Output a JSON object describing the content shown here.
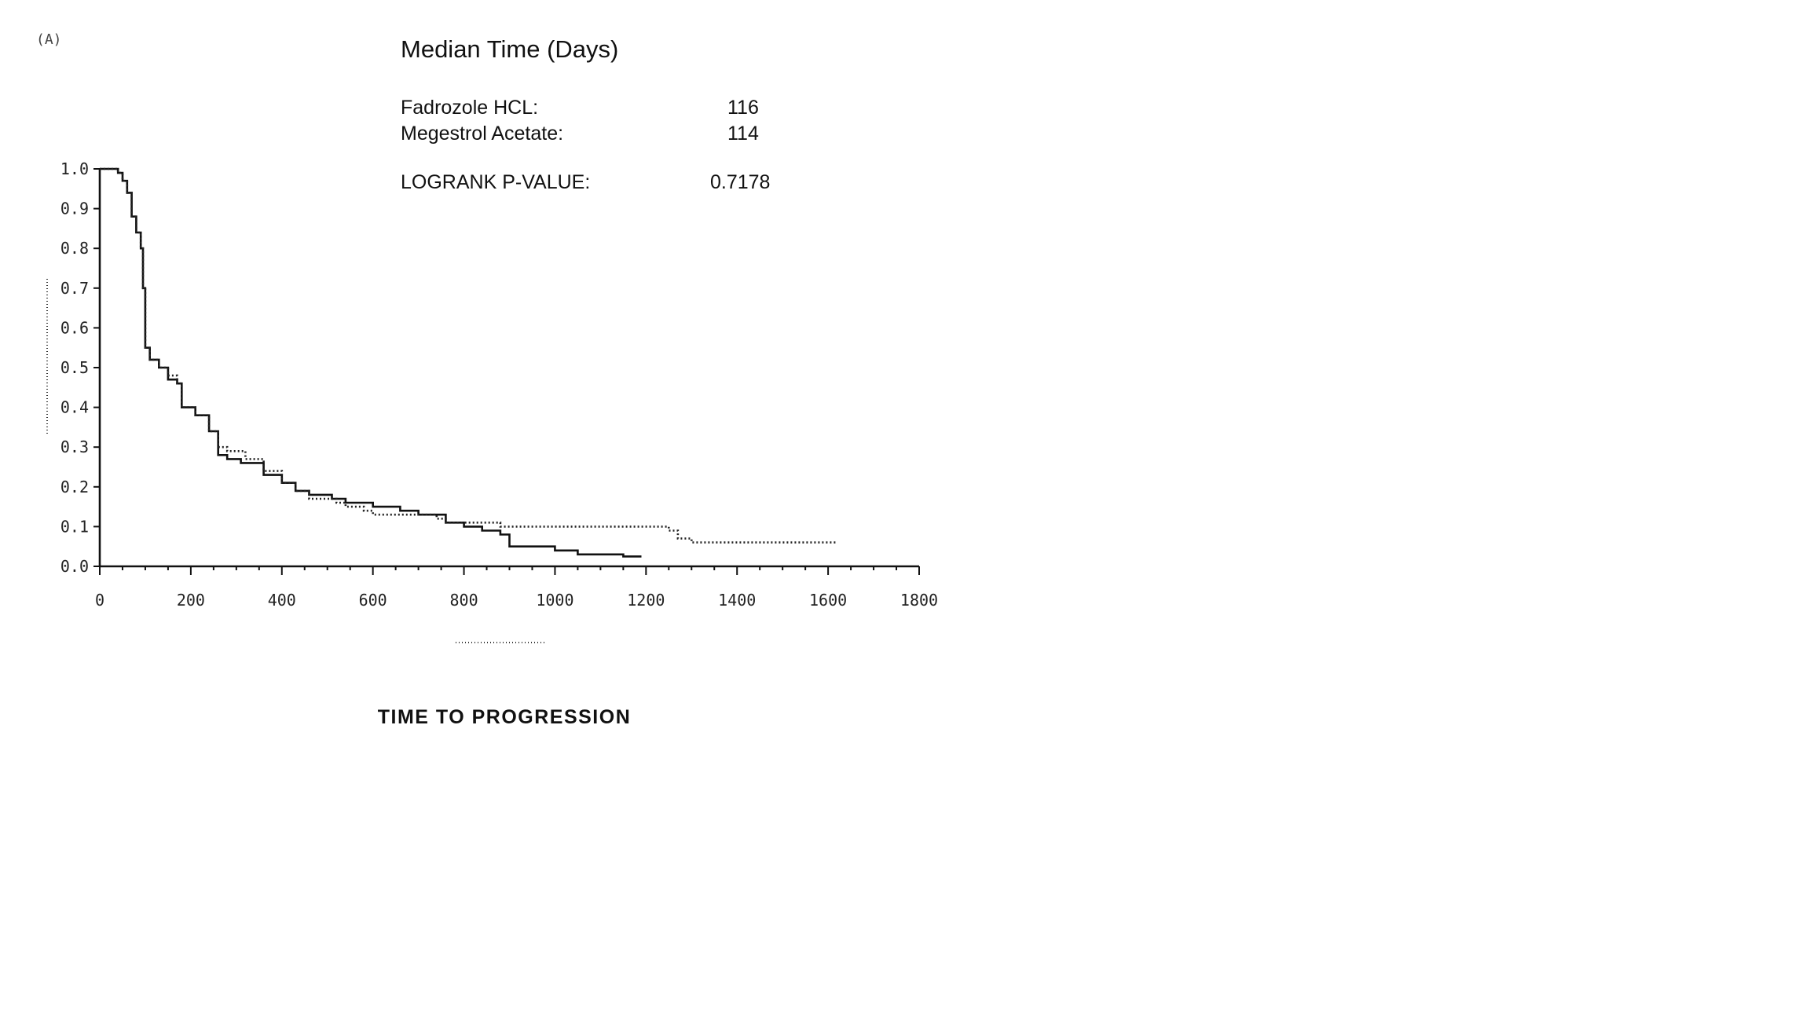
{
  "panel_label": "(A)",
  "annotation": {
    "title": "Median Time (Days)",
    "rows": [
      {
        "label": "Fadrozole HCL:",
        "value": "116"
      },
      {
        "label": "Megestrol Acetate:",
        "value": "114"
      }
    ],
    "pvalue_label": "LOGRANK P-VALUE:",
    "pvalue": "0.7178"
  },
  "footer_title": "TIME TO PROGRESSION",
  "chart_data": {
    "type": "line",
    "xlim": [
      0,
      1800
    ],
    "ylim": [
      0,
      1.0
    ],
    "x_ticks": [
      0,
      200,
      400,
      600,
      800,
      1000,
      1200,
      1400,
      1600,
      1800
    ],
    "x_tick_labels": [
      "0",
      "200",
      "400",
      "600",
      "800",
      "1000",
      "1200",
      "1400",
      "1600",
      "1800"
    ],
    "y_ticks": [
      0,
      0.1,
      0.2,
      0.3,
      0.4,
      0.5,
      0.6,
      0.7,
      0.8,
      0.9,
      1.0
    ],
    "y_tick_labels": [
      "0.0",
      "0.1",
      "0.2",
      "0.3",
      "0.4",
      "0.5",
      "0.6",
      "0.7",
      "0.8",
      "0.9",
      "1.0"
    ],
    "series": [
      {
        "style": "solid",
        "color": "#111111",
        "x": [
          0,
          20,
          30,
          40,
          50,
          60,
          70,
          80,
          90,
          95,
          100,
          110,
          130,
          150,
          170,
          180,
          210,
          240,
          260,
          280,
          310,
          360,
          400,
          430,
          460,
          510,
          540,
          600,
          660,
          700,
          760,
          800,
          840,
          880,
          900,
          950,
          1000,
          1050,
          1100,
          1150,
          1190
        ],
        "y": [
          1.0,
          1.0,
          1.0,
          0.99,
          0.97,
          0.94,
          0.88,
          0.84,
          0.8,
          0.7,
          0.55,
          0.52,
          0.5,
          0.47,
          0.46,
          0.4,
          0.38,
          0.34,
          0.28,
          0.27,
          0.26,
          0.23,
          0.21,
          0.19,
          0.18,
          0.17,
          0.16,
          0.15,
          0.14,
          0.13,
          0.11,
          0.1,
          0.09,
          0.08,
          0.05,
          0.05,
          0.04,
          0.03,
          0.03,
          0.025,
          0.025
        ]
      },
      {
        "style": "dotted",
        "color": "#222222",
        "x": [
          0,
          20,
          30,
          40,
          50,
          60,
          70,
          80,
          90,
          95,
          100,
          110,
          130,
          150,
          170,
          180,
          210,
          240,
          260,
          280,
          320,
          360,
          400,
          430,
          460,
          520,
          540,
          580,
          600,
          640,
          700,
          740,
          760,
          800,
          840,
          880,
          1000,
          1100,
          1200,
          1250,
          1270,
          1300,
          1400,
          1500,
          1620
        ],
        "y": [
          1.0,
          1.0,
          1.0,
          0.99,
          0.97,
          0.94,
          0.88,
          0.84,
          0.8,
          0.7,
          0.55,
          0.52,
          0.5,
          0.48,
          0.46,
          0.4,
          0.38,
          0.34,
          0.3,
          0.29,
          0.27,
          0.24,
          0.21,
          0.19,
          0.17,
          0.16,
          0.15,
          0.14,
          0.13,
          0.13,
          0.13,
          0.12,
          0.11,
          0.11,
          0.11,
          0.1,
          0.1,
          0.1,
          0.1,
          0.09,
          0.07,
          0.06,
          0.06,
          0.06,
          0.06
        ]
      }
    ]
  }
}
